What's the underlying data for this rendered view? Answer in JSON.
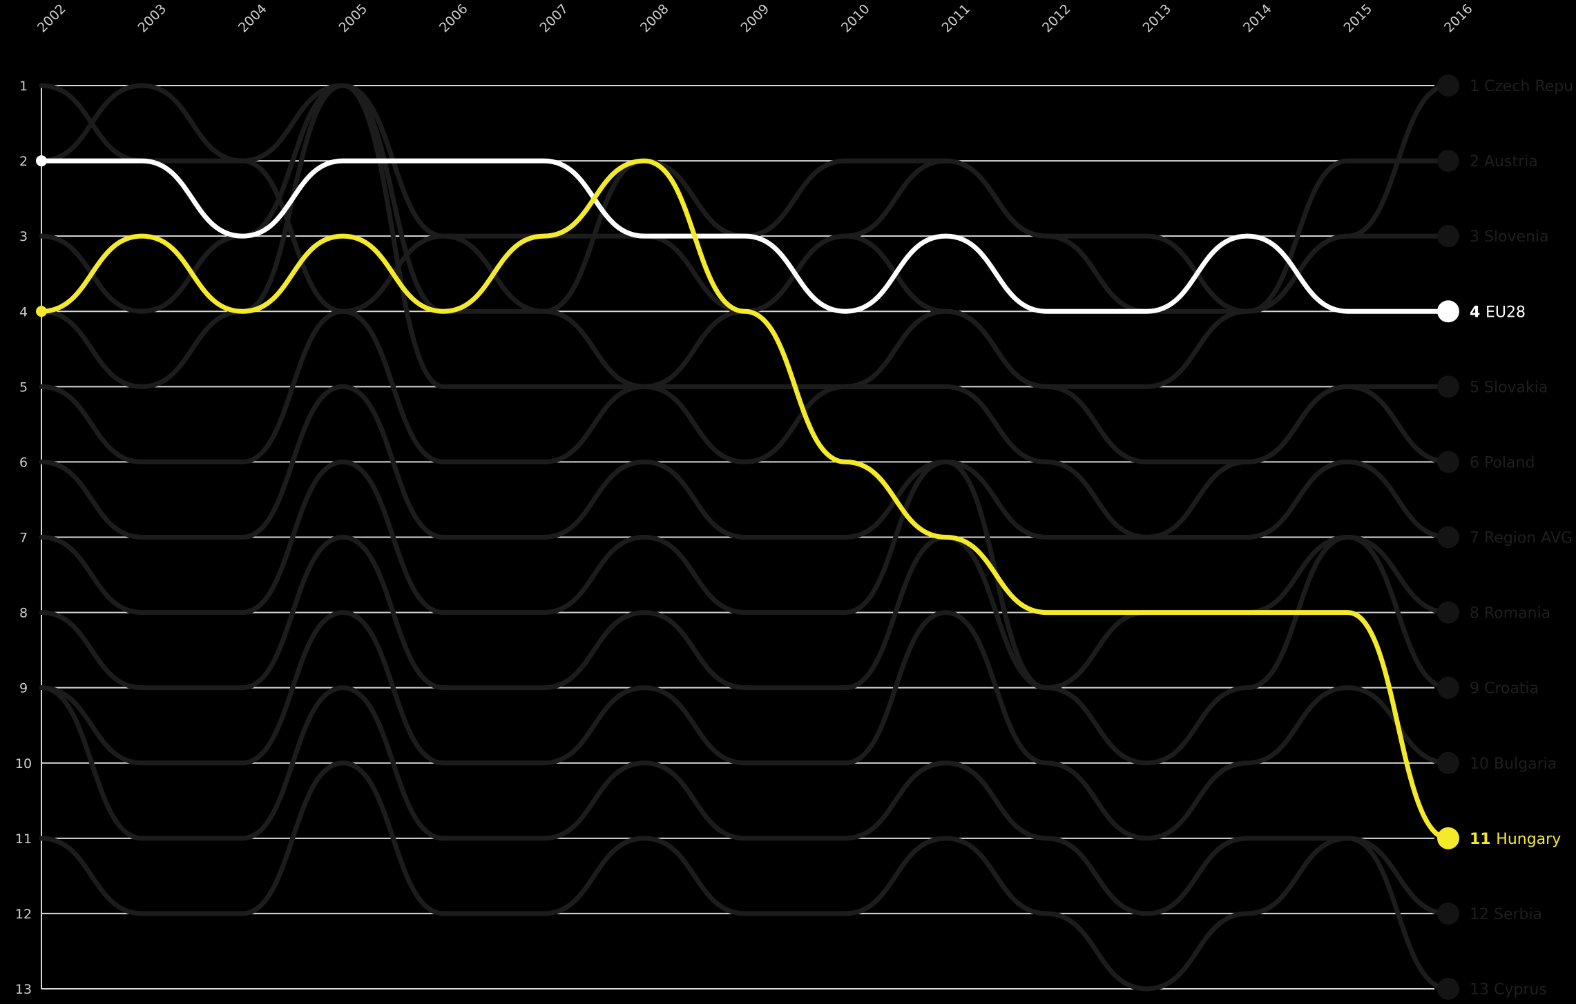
{
  "chart_data": {
    "type": "line",
    "subtype": "bump",
    "title": "",
    "xlabel": "",
    "ylabel": "",
    "x": [
      2002,
      2003,
      2004,
      2005,
      2006,
      2007,
      2008,
      2009,
      2010,
      2011,
      2012,
      2013,
      2014,
      2015,
      2016
    ],
    "ylim": [
      1,
      13
    ],
    "y_inverted": true,
    "y_ticks": [
      1,
      2,
      3,
      4,
      5,
      6,
      7,
      8,
      9,
      10,
      11,
      12,
      13
    ],
    "grid": true,
    "colors": {
      "background": "#000000",
      "highlight_eu": "#ffffff",
      "highlight_hu": "#f4ea2a",
      "context": "#1c1c1c",
      "grid": "#d9d9d9"
    },
    "series": [
      {
        "name": "EU28",
        "final_rank": "4",
        "highlight": true,
        "color": "#ffffff",
        "values": [
          2,
          2,
          3,
          2,
          2,
          2,
          3,
          3,
          4,
          3,
          4,
          4,
          3,
          4,
          4
        ]
      },
      {
        "name": "Hungary",
        "final_rank": "11",
        "highlight": true,
        "color": "#f4ea2a",
        "values": [
          4,
          3,
          4,
          3,
          4,
          3,
          2,
          4,
          6,
          7,
          8,
          8,
          8,
          8,
          11
        ]
      },
      {
        "name": "Czech Repu",
        "final_rank": "1",
        "highlight": false,
        "values": [
          2,
          1,
          2,
          1,
          3,
          4,
          2,
          3,
          2,
          2,
          3,
          3,
          4,
          3,
          1
        ]
      },
      {
        "name": "Austria",
        "final_rank": "2",
        "highlight": false,
        "values": [
          1,
          2,
          2,
          4,
          3,
          3,
          3,
          4,
          3,
          2,
          3,
          4,
          4,
          2,
          2
        ]
      },
      {
        "name": "Slovenia",
        "final_rank": "3",
        "highlight": false,
        "values": [
          3,
          4,
          3,
          1,
          4,
          4,
          5,
          4,
          3,
          4,
          5,
          5,
          4,
          3,
          3
        ]
      },
      {
        "name": "Slovakia",
        "final_rank": "5",
        "highlight": false,
        "values": [
          4,
          5,
          4,
          1,
          5,
          5,
          5,
          5,
          5,
          4,
          5,
          6,
          6,
          5,
          5
        ]
      },
      {
        "name": "Poland",
        "final_rank": "6",
        "highlight": false,
        "values": [
          5,
          6,
          6,
          4,
          6,
          6,
          5,
          6,
          5,
          5,
          6,
          7,
          6,
          5,
          6
        ]
      },
      {
        "name": "Region AVG",
        "final_rank": "7",
        "highlight": false,
        "values": [
          6,
          7,
          7,
          5,
          7,
          7,
          6,
          7,
          7,
          6,
          7,
          7,
          7,
          6,
          7
        ]
      },
      {
        "name": "Romania",
        "final_rank": "8",
        "highlight": false,
        "values": [
          7,
          8,
          8,
          6,
          8,
          8,
          7,
          8,
          8,
          6,
          9,
          8,
          8,
          7,
          8
        ]
      },
      {
        "name": "Croatia",
        "final_rank": "9",
        "highlight": false,
        "values": [
          8,
          9,
          9,
          7,
          9,
          9,
          8,
          9,
          9,
          7,
          9,
          10,
          9,
          7,
          9
        ]
      },
      {
        "name": "Bulgaria",
        "final_rank": "10",
        "highlight": false,
        "values": [
          9,
          10,
          10,
          8,
          10,
          10,
          9,
          10,
          10,
          8,
          10,
          11,
          10,
          9,
          10
        ]
      },
      {
        "name": "Serbia",
        "final_rank": "12",
        "highlight": false,
        "values": [
          9,
          11,
          11,
          9,
          11,
          11,
          10,
          11,
          11,
          10,
          11,
          12,
          11,
          11,
          12
        ]
      },
      {
        "name": "Cyprus",
        "final_rank": "13",
        "highlight": false,
        "values": [
          11,
          12,
          12,
          10,
          12,
          12,
          11,
          12,
          12,
          11,
          12,
          13,
          12,
          11,
          13
        ]
      }
    ]
  }
}
